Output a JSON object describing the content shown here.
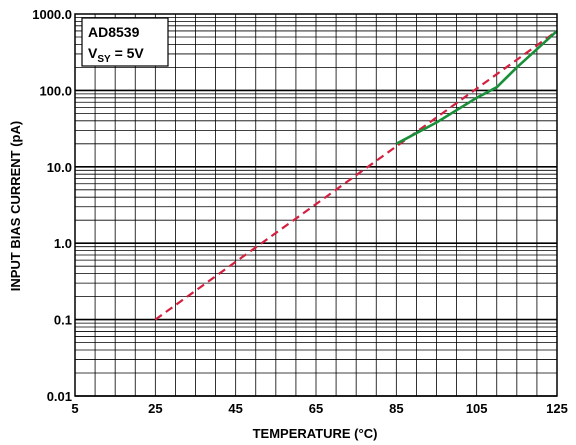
{
  "chart_data": {
    "type": "line",
    "title": "",
    "xlabel": "TEMPERATURE (°C)",
    "ylabel": "INPUT BIAS CURRENT (pA)",
    "x_scale": "linear",
    "y_scale": "log",
    "xlim": [
      5,
      125
    ],
    "ylim": [
      0.01,
      1000
    ],
    "x_ticks": [
      "5",
      "25",
      "45",
      "65",
      "85",
      "105",
      "125"
    ],
    "x_tick_values": [
      5,
      25,
      45,
      65,
      85,
      105,
      125
    ],
    "y_ticks": [
      "0.01",
      "0.1",
      "1.0",
      "10.0",
      "100.0",
      "1000.0"
    ],
    "y_tick_values": [
      0.01,
      0.1,
      1,
      10,
      100,
      1000
    ],
    "grid": true,
    "legend": {
      "position": "top-left",
      "part_number": "AD8539",
      "supply_main": "V",
      "supply_sub": "SY",
      "supply_value": " = 5V"
    },
    "series": [
      {
        "style": "dashed",
        "color": "#d4203f",
        "x": [
          25,
          125
        ],
        "y": [
          0.1,
          600
        ]
      },
      {
        "style": "solid",
        "color": "#1a8f3a",
        "x": [
          85,
          95,
          105,
          110,
          115,
          125
        ],
        "y": [
          20,
          38,
          80,
          110,
          200,
          600
        ]
      }
    ]
  }
}
